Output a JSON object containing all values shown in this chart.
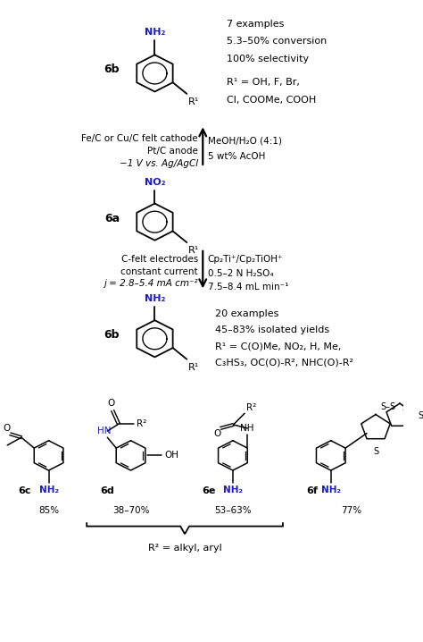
{
  "bg_color": "#ffffff",
  "black": "#000000",
  "blue": "#1a1acd",
  "fig_width": 4.74,
  "fig_height": 7.18,
  "dpi": 100,
  "top_product_label": "6b",
  "top_product_nh2": "NH₂",
  "top_product_r1": "R¹",
  "top_right_1": "7 examples",
  "top_right_2": "5.3–50% conversion",
  "top_right_3": "100% selectivity",
  "top_right_4": "R¹ = OH, F, Br,",
  "top_right_5": "Cl, COOMe, COOH",
  "arr1_l1": "Fe/C or Cu/C felt cathode",
  "arr1_l2": "Pt/C anode",
  "arr1_l3": "−1 V vs. Ag/AgCl",
  "arr1_r1": "MeOH/H₂O (4:1)",
  "arr1_r2": "5 wt% AcOH",
  "start_label": "6a",
  "start_no2": "NO₂",
  "start_r1": "R¹",
  "arr2_l1": "C-felt electrodes",
  "arr2_l2": "constant current",
  "arr2_l3": "j = 2.8–5.4 mA cm⁻²",
  "arr2_r1": "Cp₂Ti⁺/Cp₂TiOH⁺",
  "arr2_r2": "0.5–2 N H₂SO₄",
  "arr2_r3": "7.5–8.4 mL min⁻¹",
  "bot_label": "6b",
  "bot_nh2": "NH₂",
  "bot_r1": "R¹",
  "bot_right_1": "20 examples",
  "bot_right_2": "45–83% isolated yields",
  "bot_right_3": "R¹ = C(O)Me, NO₂, H, Me,",
  "bot_right_4": "C₃HS₃, OC(O)-R², NHC(O)-R²",
  "lbl_6c": "6c",
  "yld_6c": "85%",
  "lbl_6d": "6d",
  "yld_6d": "38–70%",
  "lbl_6e": "6e",
  "yld_6e": "53–63%",
  "lbl_6f": "6f",
  "yld_6f": "77%",
  "r2_label": "R² = alkyl, aryl"
}
